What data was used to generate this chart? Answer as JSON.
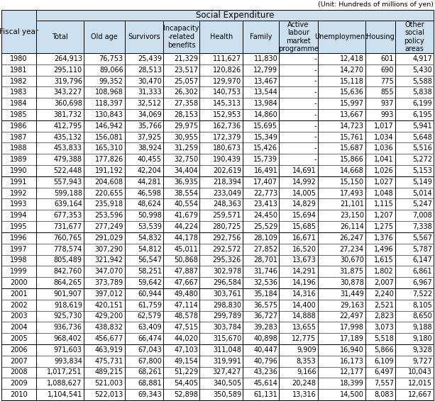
{
  "unit_text": "(Unit: Hundreds of millions of yen)",
  "main_header": "Social Expenditure",
  "col_headers": [
    "Fiscal year",
    "Total",
    "Old age",
    "Survivors",
    "Incapacity\n-related\nbenefits",
    "Health",
    "Family",
    "Active\nlabour\nmarket\nprogramme",
    "Unemployment",
    "Housing",
    "Other\nsocial\npolicy\nareas"
  ],
  "rows": [
    [
      "1980",
      "264,913",
      "76,753",
      "25,439",
      "21,329",
      "111,627",
      "11,830",
      "-",
      "12,418",
      "601",
      "4,917"
    ],
    [
      "1981",
      "295,110",
      "89,066",
      "28,513",
      "23,517",
      "120,826",
      "12,799",
      "-",
      "14,270",
      "690",
      "5,430"
    ],
    [
      "1982",
      "319,796",
      "99,352",
      "30,470",
      "25,057",
      "129,970",
      "13,467",
      "-",
      "15,118",
      "775",
      "5,588"
    ],
    [
      "1983",
      "343,227",
      "108,968",
      "31,333",
      "26,302",
      "140,753",
      "13,544",
      "-",
      "15,636",
      "855",
      "5,838"
    ],
    [
      "1984",
      "360,698",
      "118,397",
      "32,512",
      "27,358",
      "145,313",
      "13,984",
      "-",
      "15,997",
      "937",
      "6,199"
    ],
    [
      "1985",
      "381,732",
      "130,843",
      "34,069",
      "28,153",
      "152,953",
      "14,860",
      "-",
      "13,667",
      "993",
      "6,195"
    ],
    [
      "1986",
      "412,795",
      "146,942",
      "35,766",
      "29,975",
      "162,736",
      "15,695",
      "-",
      "14,723",
      "1,017",
      "5,941"
    ],
    [
      "1987",
      "435,132",
      "156,081",
      "37,925",
      "30,955",
      "172,379",
      "15,349",
      "-",
      "15,761",
      "1,034",
      "5,648"
    ],
    [
      "1988",
      "453,833",
      "165,310",
      "38,924",
      "31,259",
      "180,673",
      "15,426",
      "-",
      "15,687",
      "1,036",
      "5,516"
    ],
    [
      "1989",
      "479,388",
      "177,826",
      "40,455",
      "32,750",
      "190,439",
      "15,739",
      "-",
      "15,866",
      "1,041",
      "5,272"
    ],
    [
      "1990",
      "522,448",
      "191,192",
      "42,204",
      "34,404",
      "202,619",
      "16,491",
      "14,691",
      "14,668",
      "1,026",
      "5,153"
    ],
    [
      "1991",
      "557,943",
      "204,608",
      "44,281",
      "36,935",
      "218,394",
      "17,407",
      "14,992",
      "15,150",
      "1,027",
      "5,149"
    ],
    [
      "1992",
      "599,188",
      "220,655",
      "46,598",
      "38,554",
      "233,049",
      "22,773",
      "14,005",
      "17,493",
      "1,048",
      "5,014"
    ],
    [
      "1993",
      "639,164",
      "235,918",
      "48,624",
      "40,554",
      "248,363",
      "23,413",
      "14,829",
      "21,101",
      "1,115",
      "5,247"
    ],
    [
      "1994",
      "677,353",
      "253,596",
      "50,998",
      "41,679",
      "259,571",
      "24,450",
      "15,694",
      "23,150",
      "1,207",
      "7,008"
    ],
    [
      "1995",
      "731,677",
      "277,249",
      "53,539",
      "44,224",
      "280,725",
      "25,529",
      "15,685",
      "26,114",
      "1,275",
      "7,338"
    ],
    [
      "1996",
      "760,765",
      "291,029",
      "54,832",
      "44,178",
      "292,756",
      "28,109",
      "16,671",
      "26,247",
      "1,376",
      "5,567"
    ],
    [
      "1997",
      "778,574",
      "307,290",
      "54,812",
      "45,011",
      "292,572",
      "27,852",
      "16,520",
      "27,234",
      "1,496",
      "5,787"
    ],
    [
      "1998",
      "805,489",
      "321,942",
      "56,547",
      "50,868",
      "295,326",
      "28,701",
      "13,673",
      "30,670",
      "1,615",
      "6,147"
    ],
    [
      "1999",
      "842,760",
      "347,070",
      "58,251",
      "47,887",
      "302,978",
      "31,746",
      "14,291",
      "31,875",
      "1,802",
      "6,861"
    ],
    [
      "2000",
      "864,265",
      "373,789",
      "59,642",
      "47,667",
      "296,584",
      "32,536",
      "14,196",
      "30,878",
      "2,007",
      "6,967"
    ],
    [
      "2001",
      "901,907",
      "397,012",
      "60,944",
      "49,480",
      "303,761",
      "35,184",
      "14,316",
      "31,449",
      "2,240",
      "7,522"
    ],
    [
      "2002",
      "918,619",
      "420,151",
      "61,759",
      "47,114",
      "298,830",
      "36,575",
      "14,400",
      "29,163",
      "2,521",
      "8,105"
    ],
    [
      "2003",
      "925,730",
      "429,200",
      "62,579",
      "48,578",
      "299,789",
      "36,727",
      "14,888",
      "22,497",
      "2,823",
      "8,650"
    ],
    [
      "2004",
      "936,736",
      "438,832",
      "63,409",
      "47,515",
      "303,784",
      "39,283",
      "13,655",
      "17,998",
      "3,073",
      "9,188"
    ],
    [
      "2005",
      "968,402",
      "456,677",
      "66,474",
      "44,020",
      "315,670",
      "40,898",
      "12,775",
      "17,189",
      "5,518",
      "9,180"
    ],
    [
      "2006",
      "971,603",
      "463,919",
      "67,043",
      "47,103",
      "311,048",
      "40,447",
      "9,909",
      "16,940",
      "5,866",
      "9,328"
    ],
    [
      "2007",
      "993,834",
      "475,731",
      "67,800",
      "49,154",
      "319,991",
      "40,796",
      "8,353",
      "16,173",
      "6,109",
      "9,727"
    ],
    [
      "2008",
      "1,017,251",
      "489,215",
      "68,261",
      "51,229",
      "327,427",
      "43,236",
      "9,166",
      "12,177",
      "6,497",
      "10,043"
    ],
    [
      "2009",
      "1,088,627",
      "521,003",
      "68,881",
      "54,405",
      "340,505",
      "45,614",
      "20,248",
      "18,399",
      "7,557",
      "12,015"
    ],
    [
      "2010",
      "1,104,541",
      "522,013",
      "69,343",
      "52,898",
      "350,589",
      "61,131",
      "13,316",
      "14,500",
      "8,083",
      "12,667"
    ]
  ],
  "group_separators": [
    6,
    11,
    16,
    21,
    26
  ],
  "header_bg": "#cce0f0",
  "border_color": "#000000",
  "text_color": "#000000",
  "figsize": [
    6.13,
    5.66
  ],
  "dpi": 100,
  "col_widths_rel": [
    5.2,
    7.2,
    6.2,
    5.8,
    5.5,
    6.5,
    5.5,
    5.8,
    7.2,
    4.5,
    5.8
  ]
}
